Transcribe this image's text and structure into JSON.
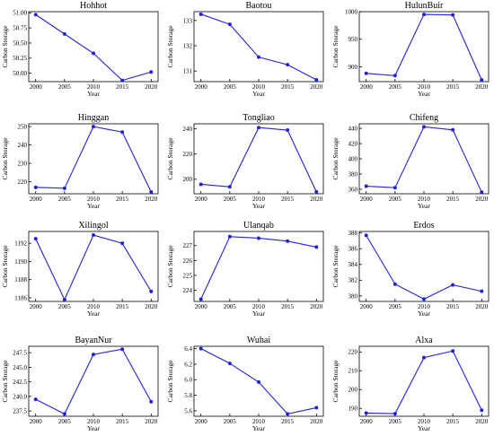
{
  "chart_data": [
    {
      "type": "line",
      "title": "Hohhot",
      "xlabel": "Year",
      "ylabel": "Carbon Storage",
      "x": [
        2000,
        2005,
        2010,
        2015,
        2020
      ],
      "values": [
        50.97,
        50.65,
        50.33,
        49.88,
        50.02
      ],
      "xticks": [
        2000,
        2005,
        2010,
        2015,
        2020
      ],
      "yticks": [
        50.0,
        50.25,
        50.5,
        50.75,
        51.0
      ],
      "ytick_labels": [
        "50.00",
        "50.25",
        "50.50",
        "50.75",
        "51.00"
      ],
      "ylim": [
        49.86,
        51.02
      ]
    },
    {
      "type": "line",
      "title": "Baotou",
      "xlabel": "Year",
      "ylabel": "Carbon Storage",
      "x": [
        2000,
        2005,
        2010,
        2015,
        2020
      ],
      "values": [
        133.25,
        132.85,
        131.55,
        131.25,
        130.65
      ],
      "xticks": [
        2000,
        2005,
        2010,
        2015,
        2020
      ],
      "yticks": [
        131,
        132,
        133
      ],
      "ytick_labels": [
        "131",
        "132",
        "133"
      ],
      "ylim": [
        130.58,
        133.35
      ]
    },
    {
      "type": "line",
      "title": "HulunBuir",
      "xlabel": "Year",
      "ylabel": "Carbon Storage",
      "x": [
        2000,
        2005,
        2010,
        2015,
        2020
      ],
      "values": [
        888,
        884,
        995,
        994,
        876
      ],
      "xticks": [
        2000,
        2005,
        2010,
        2015,
        2020
      ],
      "yticks": [
        900,
        950,
        1000
      ],
      "ytick_labels": [
        "900",
        "950",
        "1000"
      ],
      "ylim": [
        873,
        1000
      ]
    },
    {
      "type": "line",
      "title": "Hinggan",
      "xlabel": "Year",
      "ylabel": "Carbon Storage",
      "x": [
        2000,
        2005,
        2010,
        2015,
        2020
      ],
      "values": [
        217,
        216.5,
        250,
        247,
        214.5
      ],
      "xticks": [
        2000,
        2005,
        2010,
        2015,
        2020
      ],
      "yticks": [
        220,
        230,
        240,
        250
      ],
      "ytick_labels": [
        "220",
        "230",
        "240",
        "250"
      ],
      "ylim": [
        213.5,
        251.5
      ]
    },
    {
      "type": "line",
      "title": "Tongliao",
      "xlabel": "Year",
      "ylabel": "Carbon Storage",
      "x": [
        2000,
        2005,
        2010,
        2015,
        2020
      ],
      "values": [
        196,
        194,
        241,
        239,
        190
      ],
      "xticks": [
        2000,
        2005,
        2010,
        2015,
        2020
      ],
      "yticks": [
        200,
        220,
        240
      ],
      "ytick_labels": [
        "200",
        "220",
        "240"
      ],
      "ylim": [
        188.5,
        244
      ]
    },
    {
      "type": "line",
      "title": "Chifeng",
      "xlabel": "Year",
      "ylabel": "Carbon Storage",
      "x": [
        2000,
        2005,
        2010,
        2015,
        2020
      ],
      "values": [
        364,
        362,
        442,
        438,
        356
      ],
      "xticks": [
        2000,
        2005,
        2010,
        2015,
        2020
      ],
      "yticks": [
        360,
        380,
        400,
        420,
        440
      ],
      "ytick_labels": [
        "360",
        "380",
        "400",
        "420",
        "440"
      ],
      "ylim": [
        354,
        446
      ]
    },
    {
      "type": "line",
      "title": "Xilingol",
      "xlabel": "Year",
      "ylabel": "Carbon Storage",
      "x": [
        2000,
        2005,
        2010,
        2015,
        2020
      ],
      "values": [
        1192.5,
        1185.8,
        1192.9,
        1192.0,
        1186.7
      ],
      "xticks": [
        2000,
        2005,
        2010,
        2015,
        2020
      ],
      "yticks": [
        1186,
        1188,
        1190,
        1192
      ],
      "ytick_labels": [
        "1186",
        "1188",
        "1190",
        "1192"
      ],
      "ylim": [
        1185.6,
        1193.3
      ]
    },
    {
      "type": "line",
      "title": "Ulanqab",
      "xlabel": "Year",
      "ylabel": "Carbon Storage",
      "x": [
        2000,
        2005,
        2010,
        2015,
        2020
      ],
      "values": [
        223.4,
        227.6,
        227.5,
        227.3,
        226.9
      ],
      "xticks": [
        2000,
        2005,
        2010,
        2015,
        2020
      ],
      "yticks": [
        224,
        225,
        226,
        227
      ],
      "ytick_labels": [
        "224",
        "225",
        "226",
        "227"
      ],
      "ylim": [
        223.25,
        227.95
      ]
    },
    {
      "type": "line",
      "title": "Erdos",
      "xlabel": "Year",
      "ylabel": "Carbon Storage",
      "x": [
        2000,
        2005,
        2010,
        2015,
        2020
      ],
      "values": [
        387.7,
        381.5,
        379.6,
        381.4,
        380.6
      ],
      "xticks": [
        2000,
        2005,
        2010,
        2015,
        2020
      ],
      "yticks": [
        380,
        382,
        384,
        386,
        388
      ],
      "ytick_labels": [
        "380",
        "382",
        "384",
        "386",
        "388"
      ],
      "ylim": [
        379.3,
        388.2
      ]
    },
    {
      "type": "line",
      "title": "BayanNur",
      "xlabel": "Year",
      "ylabel": "Carbon Storage",
      "x": [
        2000,
        2005,
        2010,
        2015,
        2020
      ],
      "values": [
        239.5,
        237.0,
        247.2,
        248.1,
        239.1
      ],
      "xticks": [
        2000,
        2005,
        2010,
        2015,
        2020
      ],
      "yticks": [
        237.5,
        240.0,
        242.5,
        245.0,
        247.5
      ],
      "ytick_labels": [
        "237.5",
        "240.0",
        "242.5",
        "245.0",
        "247.5"
      ],
      "ylim": [
        236.6,
        248.6
      ]
    },
    {
      "type": "line",
      "title": "Wuhai",
      "xlabel": "Year",
      "ylabel": "Carbon Storage",
      "x": [
        2000,
        2005,
        2010,
        2015,
        2020
      ],
      "values": [
        6.4,
        6.21,
        5.97,
        5.56,
        5.64
      ],
      "xticks": [
        2000,
        2005,
        2010,
        2015,
        2020
      ],
      "yticks": [
        5.6,
        5.8,
        6.0,
        6.2,
        6.4
      ],
      "ytick_labels": [
        "5.6",
        "5.8",
        "6.0",
        "6.2",
        "6.4"
      ],
      "ylim": [
        5.53,
        6.43
      ]
    },
    {
      "type": "line",
      "title": "Alxa",
      "xlabel": "Year",
      "ylabel": "Carbon Storage",
      "x": [
        2000,
        2005,
        2010,
        2015,
        2020
      ],
      "values": [
        187.5,
        187.2,
        217.0,
        220.5,
        189.0
      ],
      "xticks": [
        2000,
        2005,
        2010,
        2015,
        2020
      ],
      "yticks": [
        190,
        200,
        210,
        220
      ],
      "ytick_labels": [
        "190",
        "200",
        "210",
        "220"
      ],
      "ylim": [
        185.8,
        223
      ]
    }
  ]
}
